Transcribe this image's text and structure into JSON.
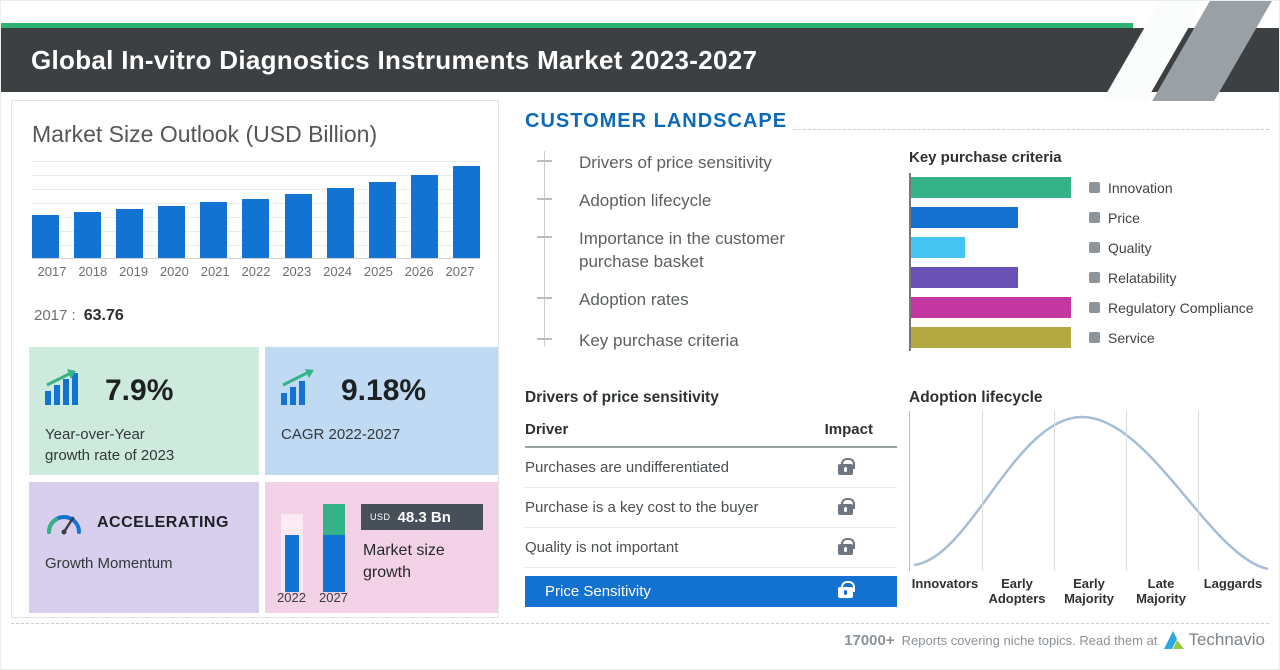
{
  "header": {
    "title": "Global In-vitro Diagnostics Instruments Market 2023-2027"
  },
  "market_outlook": {
    "title": "Market Size Outlook (USD Billion)",
    "base_year_label": "2017 :",
    "base_year_value": "63.76"
  },
  "cards": {
    "yoy": {
      "value": "7.9%",
      "line1": "Year-over-Year",
      "line2": "growth rate of 2023"
    },
    "cagr": {
      "value": "9.18%",
      "label": "CAGR 2022-2027"
    },
    "momentum": {
      "value": "ACCELERATING",
      "label": "Growth Momentum"
    },
    "growth": {
      "currency": "USD",
      "amount": "48.3 Bn",
      "label": "Market size growth",
      "year_start": "2022",
      "year_end": "2027"
    }
  },
  "customer_landscape": {
    "title": "CUSTOMER LANDSCAPE",
    "items": [
      "Drivers of price sensitivity",
      "Adoption lifecycle",
      "Importance in the customer purchase basket",
      "Adoption rates",
      "Key purchase criteria"
    ]
  },
  "drivers_table": {
    "title": "Drivers of price sensitivity",
    "columns": [
      "Driver",
      "Impact"
    ],
    "rows": [
      "Purchases are undifferentiated",
      "Purchase is a key cost to the buyer",
      "Quality is not important"
    ],
    "highlight_row": "Price Sensitivity"
  },
  "footer": {
    "count": "17000+",
    "text": "Reports covering niche topics. Read them at",
    "brand": "Technavio"
  },
  "colors": {
    "accent_green": "#2eb271",
    "header_band": "#3d4042",
    "bar_blue": "#1373d2",
    "highlight_blue": "#1371cf",
    "landscape_title_blue": "#0d6ab9"
  },
  "chart_data": [
    {
      "type": "bar",
      "title": "Market Size Outlook (USD Billion)",
      "categories": [
        "2017",
        "2018",
        "2019",
        "2020",
        "2021",
        "2022",
        "2023",
        "2024",
        "2025",
        "2026",
        "2027"
      ],
      "values": [
        63.76,
        67.9,
        72.3,
        77.0,
        82.0,
        87.5,
        94.4,
        103.1,
        112.6,
        123.0,
        135.8
      ],
      "ylabel": "USD Billion",
      "ylim": [
        0,
        140
      ],
      "bar_color": "#1373d2",
      "grid": true,
      "annotation": "2017 : 63.76"
    },
    {
      "type": "bar",
      "orientation": "horizontal",
      "title": "Key purchase criteria",
      "categories": [
        "Innovation",
        "Price",
        "Quality",
        "Relatability",
        "Regulatory Compliance",
        "Service"
      ],
      "values": [
        100,
        67,
        34,
        67,
        100,
        100
      ],
      "colors": [
        "#35b287",
        "#1471cf",
        "#45c4f1",
        "#6950b5",
        "#c238a0",
        "#b3a942"
      ],
      "legend_position": "right",
      "note": "relative bar lengths (percent of longest bar)"
    },
    {
      "type": "bar",
      "title": "Market size growth",
      "categories": [
        "2022",
        "2027"
      ],
      "values": [
        87.5,
        135.8
      ],
      "growth_label": "USD 48.3 Bn"
    },
    {
      "type": "area",
      "title": "Adoption lifecycle",
      "shape": "bell-curve",
      "categories": [
        "Innovators",
        "Early Adopters",
        "Early Majority",
        "Late Majority",
        "Laggards"
      ]
    }
  ]
}
